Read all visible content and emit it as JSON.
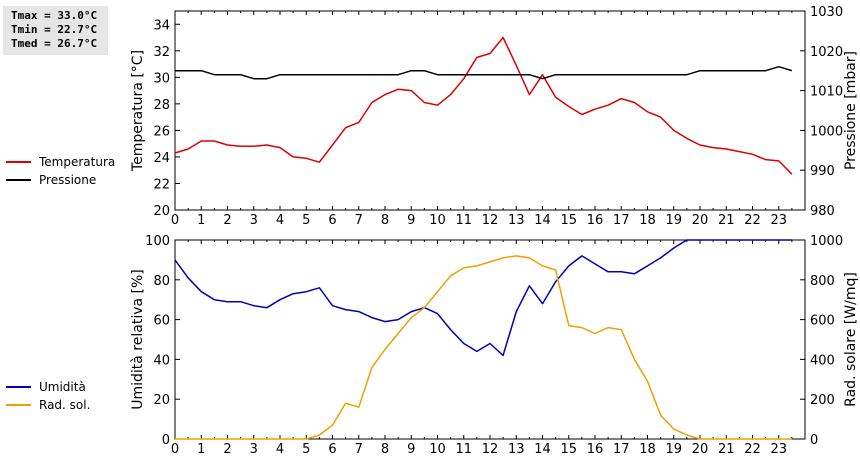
{
  "stats": {
    "tmax": "Tmax = 33.0°C",
    "tmin": "Tmin = 22.7°C",
    "tmed": "Tmed = 26.7°C"
  },
  "colors": {
    "temperature": "#dd0000",
    "pressure": "#000000",
    "humidity": "#0000bb",
    "radiation": "#f0a000"
  },
  "chart_data": [
    {
      "type": "line",
      "x_ticks": [
        "0",
        "1",
        "2",
        "3",
        "4",
        "5",
        "6",
        "7",
        "8",
        "9",
        "10",
        "11",
        "12",
        "13",
        "14",
        "15",
        "16",
        "17",
        "18",
        "19",
        "20",
        "21",
        "22",
        "23"
      ],
      "xlim": [
        0,
        24
      ],
      "ylabel_left": "Temperatura [°C]",
      "ylabel_right": "Pressione [mbar]",
      "ylim_left": [
        20,
        35
      ],
      "ylim_right": [
        980,
        1030
      ],
      "yticks_left": [
        20,
        22,
        24,
        26,
        28,
        30,
        32,
        34
      ],
      "yticks_right": [
        980,
        990,
        1000,
        1010,
        1020,
        1030
      ],
      "grid": false,
      "legend": "left",
      "series": [
        {
          "name": "Temperatura",
          "axis": "left",
          "color_key": "temperature",
          "x": [
            0,
            0.5,
            1,
            1.5,
            2,
            2.5,
            3,
            3.5,
            4,
            4.5,
            5,
            5.5,
            6,
            6.5,
            7,
            7.5,
            8,
            8.5,
            9,
            9.5,
            10,
            10.5,
            11,
            11.5,
            12,
            12.5,
            13,
            13.5,
            14,
            14.5,
            15,
            15.5,
            16,
            16.5,
            17,
            17.5,
            18,
            18.5,
            19,
            19.5,
            20,
            20.5,
            21,
            21.5,
            22,
            22.5,
            23,
            23.5
          ],
          "y": [
            24.3,
            24.6,
            25.2,
            25.2,
            24.9,
            24.8,
            24.8,
            24.9,
            24.7,
            24.0,
            23.9,
            23.6,
            24.9,
            26.2,
            26.6,
            28.1,
            28.7,
            29.1,
            29.0,
            28.1,
            27.9,
            28.7,
            29.9,
            31.5,
            31.8,
            33.0,
            30.9,
            28.7,
            30.2,
            28.5,
            27.8,
            27.2,
            27.6,
            27.9,
            28.4,
            28.1,
            27.4,
            27.0,
            26.0,
            25.4,
            24.9,
            24.7,
            24.6,
            24.4,
            24.2,
            23.8,
            23.7,
            22.7
          ]
        },
        {
          "name": "Pressione",
          "axis": "right",
          "color_key": "pressure",
          "x": [
            0,
            0.5,
            1,
            1.5,
            2,
            2.5,
            3,
            3.5,
            4,
            4.5,
            5,
            5.5,
            6,
            6.5,
            7,
            7.5,
            8,
            8.5,
            9,
            9.5,
            10,
            10.5,
            11,
            11.5,
            12,
            12.5,
            13,
            13.5,
            14,
            14.5,
            15,
            15.5,
            16,
            16.5,
            17,
            17.5,
            18,
            18.5,
            19,
            19.5,
            20,
            20.5,
            21,
            21.5,
            22,
            22.5,
            23,
            23.5
          ],
          "y": [
            1015,
            1015,
            1015,
            1014,
            1014,
            1014,
            1013,
            1013,
            1014,
            1014,
            1014,
            1014,
            1014,
            1014,
            1014,
            1014,
            1014,
            1014,
            1015,
            1015,
            1014,
            1014,
            1014,
            1014,
            1014,
            1014,
            1014,
            1014,
            1013,
            1014,
            1014,
            1014,
            1014,
            1014,
            1014,
            1014,
            1014,
            1014,
            1014,
            1014,
            1015,
            1015,
            1015,
            1015,
            1015,
            1015,
            1016,
            1015
          ]
        }
      ]
    },
    {
      "type": "line",
      "x_ticks": [
        "0",
        "1",
        "2",
        "3",
        "4",
        "5",
        "6",
        "7",
        "8",
        "9",
        "10",
        "11",
        "12",
        "13",
        "14",
        "15",
        "16",
        "17",
        "18",
        "19",
        "20",
        "21",
        "22",
        "23"
      ],
      "xlim": [
        0,
        24
      ],
      "ylabel_left": "Umidità relativa [%]",
      "ylabel_right": "Rad. solare [W/mq]",
      "ylim_left": [
        0,
        100
      ],
      "ylim_right": [
        0,
        1000
      ],
      "yticks_left": [
        0,
        20,
        40,
        60,
        80,
        100
      ],
      "yticks_right": [
        0,
        200,
        400,
        600,
        800,
        1000
      ],
      "grid": false,
      "legend": "left",
      "series": [
        {
          "name": "Umidità",
          "axis": "left",
          "color_key": "humidity",
          "x": [
            0,
            0.5,
            1,
            1.5,
            2,
            2.5,
            3,
            3.5,
            4,
            4.5,
            5,
            5.5,
            6,
            6.5,
            7,
            7.5,
            8,
            8.5,
            9,
            9.5,
            10,
            10.5,
            11,
            11.5,
            12,
            12.5,
            13,
            13.5,
            14,
            14.5,
            15,
            15.5,
            16,
            16.5,
            17,
            17.5,
            18,
            18.5,
            19,
            19.5,
            20,
            20.5,
            21,
            21.5,
            22,
            22.5,
            23,
            23.5
          ],
          "y": [
            90,
            81,
            74,
            70,
            69,
            69,
            67,
            66,
            70,
            73,
            74,
            76,
            67,
            65,
            64,
            61,
            59,
            60,
            64,
            66,
            63,
            55,
            48,
            44,
            48,
            42,
            64,
            77,
            68,
            79,
            87,
            92,
            88,
            84,
            84,
            83,
            87,
            91,
            96,
            100,
            100,
            100,
            100,
            100,
            100,
            100,
            100,
            100
          ]
        },
        {
          "name": "Rad. sol.",
          "axis": "right",
          "color_key": "radiation",
          "x": [
            0,
            0.5,
            1,
            1.5,
            2,
            2.5,
            3,
            3.5,
            4,
            4.5,
            5,
            5.5,
            6,
            6.5,
            7,
            7.5,
            8,
            8.5,
            9,
            9.5,
            10,
            10.5,
            11,
            11.5,
            12,
            12.5,
            13,
            13.5,
            14,
            14.5,
            15,
            15.5,
            16,
            16.5,
            17,
            17.5,
            18,
            18.5,
            19,
            19.5,
            20,
            20.5,
            21,
            21.5,
            22,
            22.5,
            23,
            23.5
          ],
          "y": [
            0,
            0,
            0,
            0,
            0,
            0,
            0,
            0,
            0,
            0,
            0,
            20,
            70,
            180,
            160,
            360,
            450,
            530,
            610,
            660,
            740,
            820,
            860,
            870,
            890,
            910,
            920,
            910,
            870,
            850,
            570,
            560,
            530,
            560,
            550,
            400,
            290,
            120,
            50,
            20,
            0,
            0,
            0,
            0,
            0,
            0,
            0,
            0
          ]
        }
      ]
    }
  ]
}
